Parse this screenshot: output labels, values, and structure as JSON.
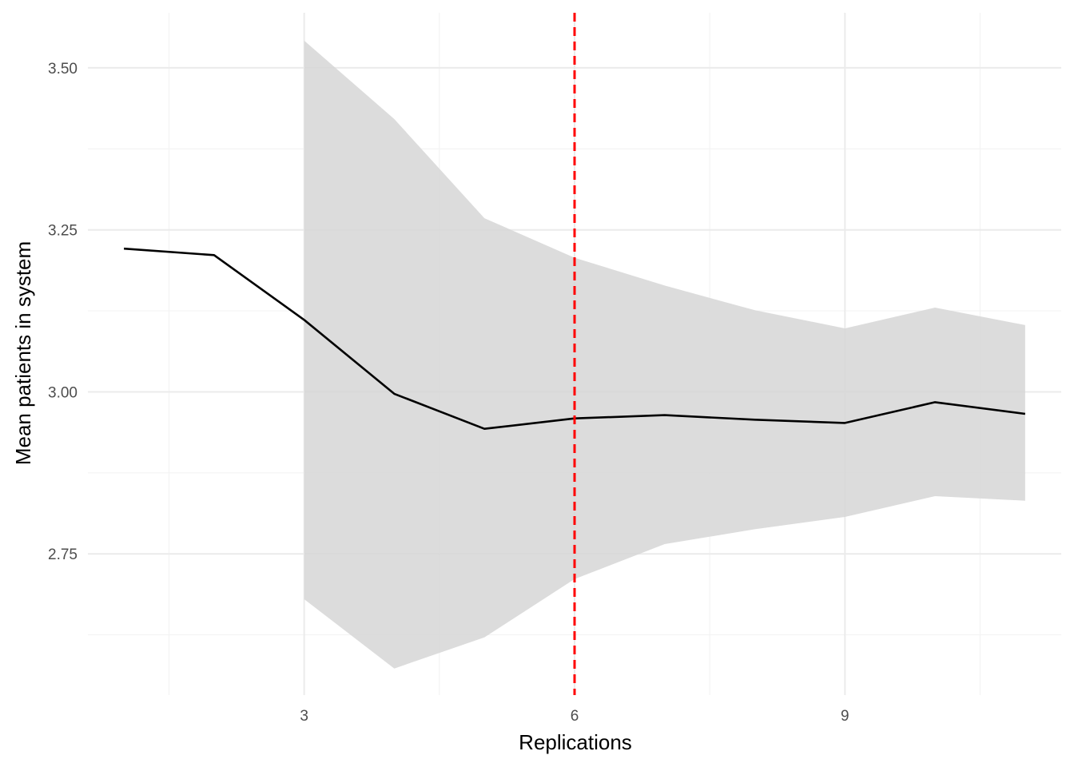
{
  "chart_data": {
    "type": "line",
    "xlabel": "Replications",
    "ylabel": "Mean patients in system",
    "x": [
      1,
      2,
      3,
      4,
      5,
      6,
      7,
      8,
      9,
      10,
      11
    ],
    "series": [
      {
        "values": [
          3.221,
          3.211,
          3.111,
          2.997,
          2.943,
          2.959,
          2.964,
          2.957,
          2.952,
          2.984,
          2.966
        ]
      }
    ],
    "confidence_band": {
      "x": [
        3,
        4,
        5,
        6,
        7,
        8,
        9,
        10,
        11
      ],
      "lower": [
        2.68,
        2.573,
        2.621,
        2.711,
        2.765,
        2.788,
        2.807,
        2.839,
        2.832
      ],
      "upper": [
        3.542,
        3.421,
        3.268,
        3.207,
        3.164,
        3.126,
        3.098,
        3.13,
        3.103
      ]
    },
    "reference_line": {
      "x": 6,
      "color": "#ff0000",
      "style": "dashed"
    },
    "x_ticks": [
      3,
      6,
      9
    ],
    "y_ticks": [
      "2.75",
      "3.00",
      "3.25",
      "3.50"
    ],
    "xlim": [
      0.6,
      11.4
    ],
    "ylim": [
      2.532,
      3.585
    ],
    "grid": true,
    "line_color": "#000000",
    "band_color": "#d6d6d6"
  }
}
